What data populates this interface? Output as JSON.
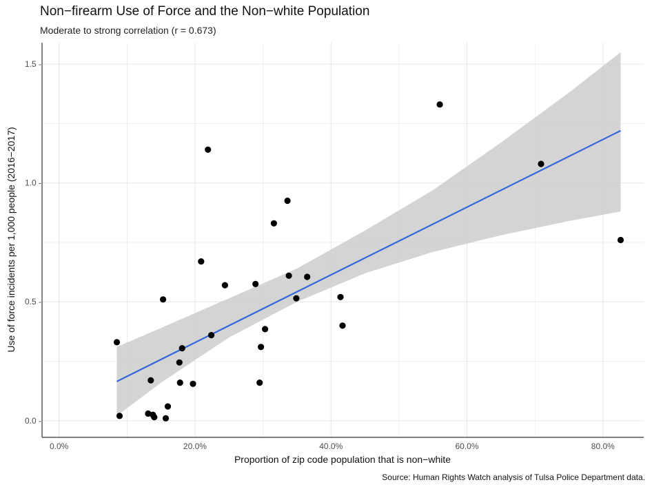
{
  "chart_data": {
    "type": "scatter",
    "title": "Non−firearm Use of Force and the Non−white Population",
    "subtitle": "Moderate to strong correlation (r = 0.673)",
    "xlabel": "Proportion of zip code population that is non−white",
    "ylabel": "Use of force incidents per 1,000 people (2016−2017)",
    "caption": "Source: Human Rights Watch analysis of Tulsa Police Department data.",
    "xlim": [
      -0.025,
      0.86
    ],
    "ylim": [
      -0.07,
      1.59
    ],
    "x_ticks": [
      0.0,
      0.2,
      0.4,
      0.6,
      0.8
    ],
    "x_tick_labels": [
      "0.0%",
      "20.0%",
      "40.0%",
      "60.0%",
      "80.0%"
    ],
    "y_ticks": [
      0.0,
      0.5,
      1.0,
      1.5
    ],
    "y_tick_labels": [
      "0.0 -",
      "0.5 -",
      "1.0 -",
      "1.5 -"
    ],
    "grid": true,
    "colors": {
      "point": "#000000",
      "fit_line": "#3366dd",
      "confidence_band": "#cccccc",
      "grid": "#e6e6e6",
      "axis": "#333333"
    },
    "points": [
      {
        "x": 0.085,
        "y": 0.33
      },
      {
        "x": 0.089,
        "y": 0.02
      },
      {
        "x": 0.131,
        "y": 0.03
      },
      {
        "x": 0.135,
        "y": 0.17
      },
      {
        "x": 0.138,
        "y": 0.025
      },
      {
        "x": 0.14,
        "y": 0.015
      },
      {
        "x": 0.153,
        "y": 0.51
      },
      {
        "x": 0.157,
        "y": 0.01
      },
      {
        "x": 0.16,
        "y": 0.06
      },
      {
        "x": 0.177,
        "y": 0.245
      },
      {
        "x": 0.178,
        "y": 0.16
      },
      {
        "x": 0.181,
        "y": 0.305
      },
      {
        "x": 0.197,
        "y": 0.155
      },
      {
        "x": 0.209,
        "y": 0.67
      },
      {
        "x": 0.219,
        "y": 1.14
      },
      {
        "x": 0.224,
        "y": 0.36
      },
      {
        "x": 0.244,
        "y": 0.57
      },
      {
        "x": 0.289,
        "y": 0.575
      },
      {
        "x": 0.295,
        "y": 0.16
      },
      {
        "x": 0.297,
        "y": 0.31
      },
      {
        "x": 0.303,
        "y": 0.385
      },
      {
        "x": 0.316,
        "y": 0.83
      },
      {
        "x": 0.336,
        "y": 0.925
      },
      {
        "x": 0.338,
        "y": 0.61
      },
      {
        "x": 0.349,
        "y": 0.515
      },
      {
        "x": 0.365,
        "y": 0.605
      },
      {
        "x": 0.414,
        "y": 0.52
      },
      {
        "x": 0.417,
        "y": 0.4
      },
      {
        "x": 0.56,
        "y": 1.33
      },
      {
        "x": 0.709,
        "y": 1.08
      },
      {
        "x": 0.826,
        "y": 0.76
      }
    ],
    "fit_line": {
      "x": [
        0.085,
        0.826
      ],
      "y": [
        0.165,
        1.22
      ]
    },
    "confidence_band": {
      "x": [
        0.085,
        0.15,
        0.25,
        0.35,
        0.45,
        0.55,
        0.65,
        0.75,
        0.826
      ],
      "lower": [
        0.02,
        0.16,
        0.35,
        0.5,
        0.62,
        0.71,
        0.78,
        0.84,
        0.88
      ],
      "upper": [
        0.31,
        0.39,
        0.515,
        0.64,
        0.8,
        0.97,
        1.17,
        1.38,
        1.55
      ]
    }
  }
}
